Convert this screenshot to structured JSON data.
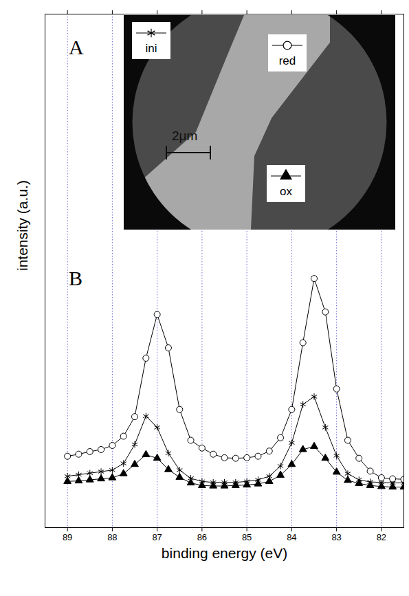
{
  "chart_data": {
    "type": "line",
    "x_label": "binding energy (eV)",
    "y_label": "intensity (a.u.)",
    "annotations": [
      {
        "text": "A"
      },
      {
        "text": "B"
      },
      {
        "text": "2μm"
      }
    ],
    "x": [
      89,
      88.75,
      88.5,
      88.25,
      88,
      87.75,
      87.5,
      87.25,
      87,
      86.75,
      86.5,
      86.25,
      86,
      85.75,
      85.5,
      85.25,
      85,
      84.75,
      84.5,
      84.25,
      84,
      83.75,
      83.5,
      83.25,
      83,
      82.75,
      82.5,
      82.25,
      82,
      81.75,
      81.5
    ],
    "series": [
      {
        "name": "ini",
        "color": "#000000",
        "marker": "asterisk",
        "values": [
          10,
          10.3,
          10.6,
          10.9,
          11.2,
          12.5,
          16.2,
          21.7,
          19.5,
          14.5,
          11.2,
          9.6,
          9,
          8.8,
          8.8,
          8.8,
          9,
          9.3,
          10,
          12,
          16.5,
          24,
          25.5,
          19.5,
          14,
          10.5,
          9.3,
          8.9,
          8.8,
          8.7,
          8.7
        ]
      },
      {
        "name": "red",
        "color": "#000000",
        "marker": "circle",
        "values": [
          13.9,
          14.3,
          14.8,
          15.2,
          16.0,
          17.8,
          21.6,
          33,
          41.5,
          35,
          23,
          17,
          15.5,
          14.3,
          13.6,
          13.5,
          13.6,
          13.9,
          14.9,
          17.5,
          23,
          36,
          48.5,
          42,
          27,
          17,
          13.5,
          11,
          9.7,
          9.5,
          9.4
        ]
      },
      {
        "name": "ox",
        "color": "#000000",
        "marker": "triangle",
        "values": [
          9,
          9.1,
          9.3,
          9.5,
          9.7,
          10.5,
          12.3,
          14.2,
          13.5,
          11.3,
          9.8,
          8.7,
          8.2,
          8.1,
          8.1,
          8.2,
          8.3,
          8.5,
          9,
          10.2,
          12.3,
          15.2,
          15.8,
          13.5,
          10.8,
          9.2,
          8.6,
          8.2,
          8,
          7.9,
          7.9
        ]
      }
    ],
    "xlim": [
      89.5,
      81.5
    ],
    "xticks": [
      89,
      88,
      87,
      86,
      85,
      84,
      83,
      82
    ],
    "ylim": [
      0,
      100
    ],
    "tick_labels": "x",
    "grid": true,
    "legend": "top"
  }
}
